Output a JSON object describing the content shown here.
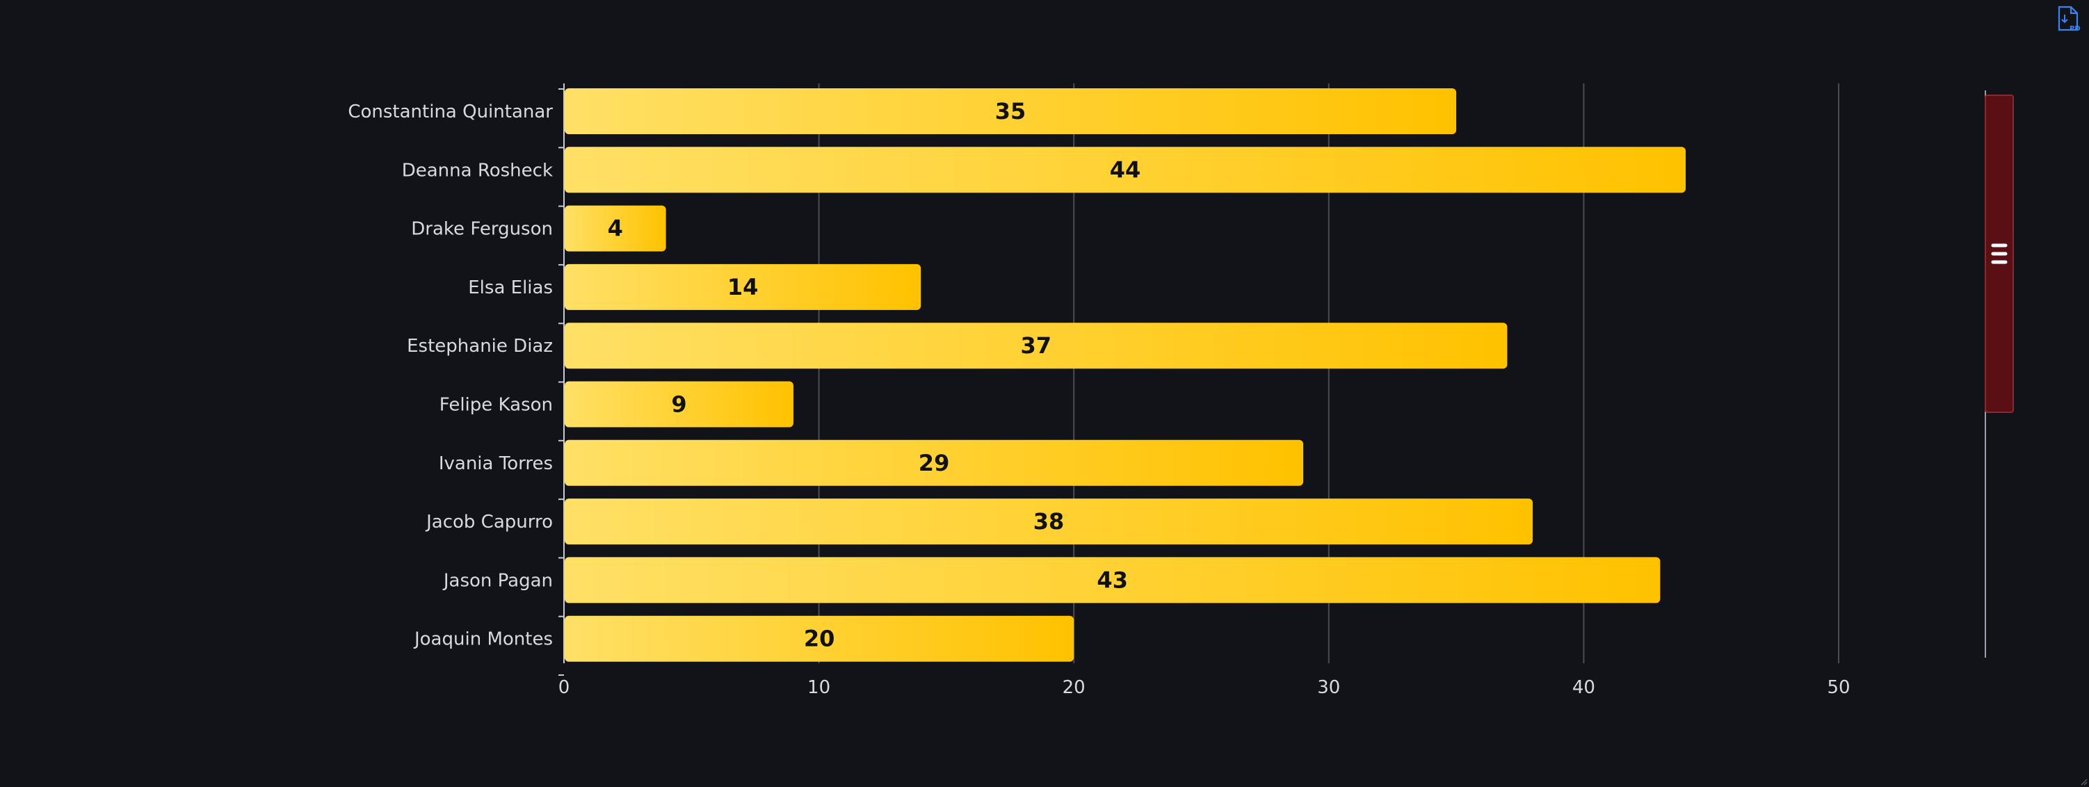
{
  "export": {
    "icon": "pdf-file-icon",
    "label": "PDF"
  },
  "colors": {
    "background": "#111318",
    "bar_start": "#ffe066",
    "bar_end": "#ffc200",
    "grid": "#4a4d55",
    "axis_text": "#d7dae0",
    "data_label": "#111111",
    "scrollbar_fill": "#5a0f14",
    "scrollbar_border": "#8a2a30",
    "scrollbar_track": "#9aa0ad",
    "export_icon": "#3b82f6"
  },
  "chart_data": {
    "type": "bar",
    "orientation": "horizontal",
    "categories": [
      "Constantina Quintanar",
      "Deanna Rosheck",
      "Drake Ferguson",
      "Elsa Elias",
      "Estephanie Diaz",
      "Felipe Kason",
      "Ivania Torres",
      "Jacob Capurro",
      "Jason Pagan",
      "Joaquin Montes"
    ],
    "values": [
      35,
      44,
      4,
      14,
      37,
      9,
      29,
      38,
      43,
      20
    ],
    "xlim": [
      0,
      50
    ],
    "xticks": [
      "0",
      "10",
      "20",
      "30",
      "40",
      "50"
    ],
    "title": "",
    "xlabel": "",
    "ylabel": "",
    "grid": "vertical",
    "legend": "none",
    "data_labels": true,
    "scrollbar": {
      "orientation": "vertical",
      "position": "right"
    }
  }
}
